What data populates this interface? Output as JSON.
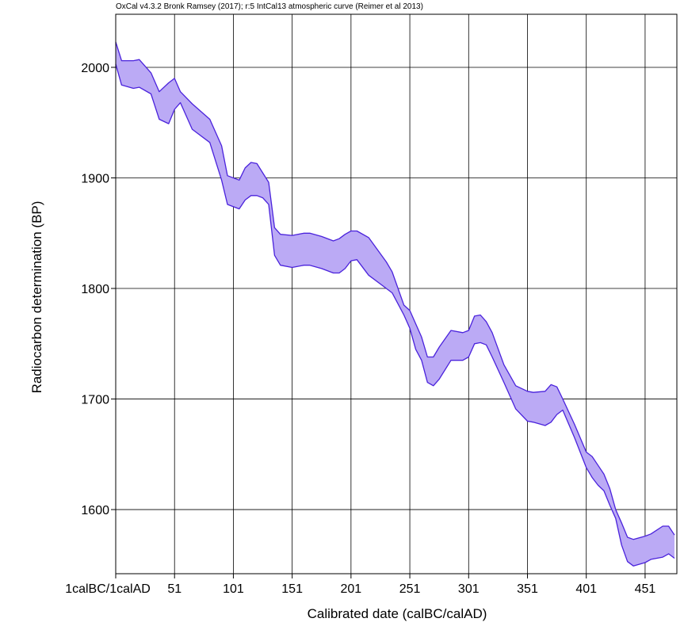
{
  "header": {
    "credit": "OxCal v4.3.2 Bronk Ramsey (2017); r:5 IntCal13 atmospheric curve (Reimer et al 2013)"
  },
  "chart_data": {
    "type": "area",
    "title": "",
    "xlabel": "Calibrated date (calBC/calAD)",
    "ylabel": "Radiocarbon determination (BP)",
    "xlim": [
      1,
      478
    ],
    "ylim": [
      1542,
      2048
    ],
    "grid": true,
    "x_ticks": [
      {
        "value": 1,
        "label": "1calBC/1calAD"
      },
      {
        "value": 51,
        "label": "51"
      },
      {
        "value": 101,
        "label": "101"
      },
      {
        "value": 151,
        "label": "151"
      },
      {
        "value": 201,
        "label": "201"
      },
      {
        "value": 251,
        "label": "251"
      },
      {
        "value": 301,
        "label": "301"
      },
      {
        "value": 351,
        "label": "351"
      },
      {
        "value": 401,
        "label": "401"
      },
      {
        "value": 451,
        "label": "451"
      }
    ],
    "y_ticks": [
      1600,
      1700,
      1800,
      1900,
      2000
    ],
    "colors": {
      "band_fill": "#bbaaf5",
      "band_stroke": "#4a22dc",
      "grid": "#000000"
    },
    "series": [
      {
        "role": "upper",
        "x": [
          1,
          6,
          16,
          21,
          31,
          38,
          46,
          51,
          56,
          66,
          81,
          91,
          96,
          106,
          111,
          116,
          121,
          131,
          136,
          141,
          151,
          161,
          166,
          176,
          186,
          191,
          196,
          201,
          206,
          216,
          231,
          236,
          246,
          251,
          261,
          266,
          271,
          276,
          286,
          296,
          301,
          306,
          311,
          316,
          321,
          331,
          341,
          351,
          356,
          366,
          371,
          376,
          381,
          391,
          401,
          406,
          411,
          416,
          421,
          426,
          431,
          436,
          441,
          451,
          456,
          466,
          471,
          476
        ],
        "y": [
          2023,
          2006,
          2006,
          2007,
          1995,
          1978,
          1986,
          1990,
          1978,
          1967,
          1953,
          1929,
          1902,
          1898,
          1909,
          1914,
          1913,
          1896,
          1855,
          1849,
          1848,
          1850,
          1850,
          1847,
          1843,
          1845,
          1849,
          1852,
          1852,
          1846,
          1824,
          1815,
          1785,
          1780,
          1756,
          1738,
          1738,
          1747,
          1762,
          1760,
          1762,
          1775,
          1776,
          1770,
          1760,
          1731,
          1712,
          1707,
          1706,
          1707,
          1713,
          1711,
          1700,
          1677,
          1652,
          1648,
          1640,
          1632,
          1619,
          1600,
          1588,
          1575,
          1573,
          1576,
          1578,
          1585,
          1585,
          1577
        ]
      },
      {
        "role": "lower",
        "x": [
          1,
          6,
          16,
          21,
          31,
          38,
          46,
          51,
          56,
          66,
          81,
          91,
          96,
          106,
          111,
          116,
          121,
          126,
          131,
          136,
          141,
          151,
          161,
          166,
          176,
          186,
          191,
          196,
          201,
          206,
          216,
          231,
          236,
          246,
          251,
          256,
          261,
          266,
          271,
          276,
          286,
          296,
          301,
          306,
          311,
          316,
          321,
          331,
          341,
          351,
          356,
          366,
          371,
          376,
          381,
          391,
          401,
          406,
          411,
          416,
          421,
          426,
          431,
          436,
          441,
          451,
          456,
          466,
          471,
          476
        ],
        "y": [
          2003,
          1984,
          1981,
          1982,
          1976,
          1953,
          1949,
          1962,
          1968,
          1944,
          1932,
          1898,
          1876,
          1872,
          1880,
          1884,
          1884,
          1882,
          1876,
          1830,
          1821,
          1819,
          1821,
          1821,
          1818,
          1814,
          1814,
          1818,
          1825,
          1826,
          1812,
          1800,
          1796,
          1776,
          1764,
          1745,
          1735,
          1715,
          1712,
          1718,
          1735,
          1735,
          1738,
          1750,
          1751,
          1749,
          1738,
          1715,
          1691,
          1680,
          1679,
          1676,
          1679,
          1686,
          1690,
          1665,
          1638,
          1629,
          1622,
          1617,
          1604,
          1592,
          1568,
          1553,
          1549,
          1552,
          1555,
          1557,
          1560,
          1556
        ]
      }
    ]
  }
}
